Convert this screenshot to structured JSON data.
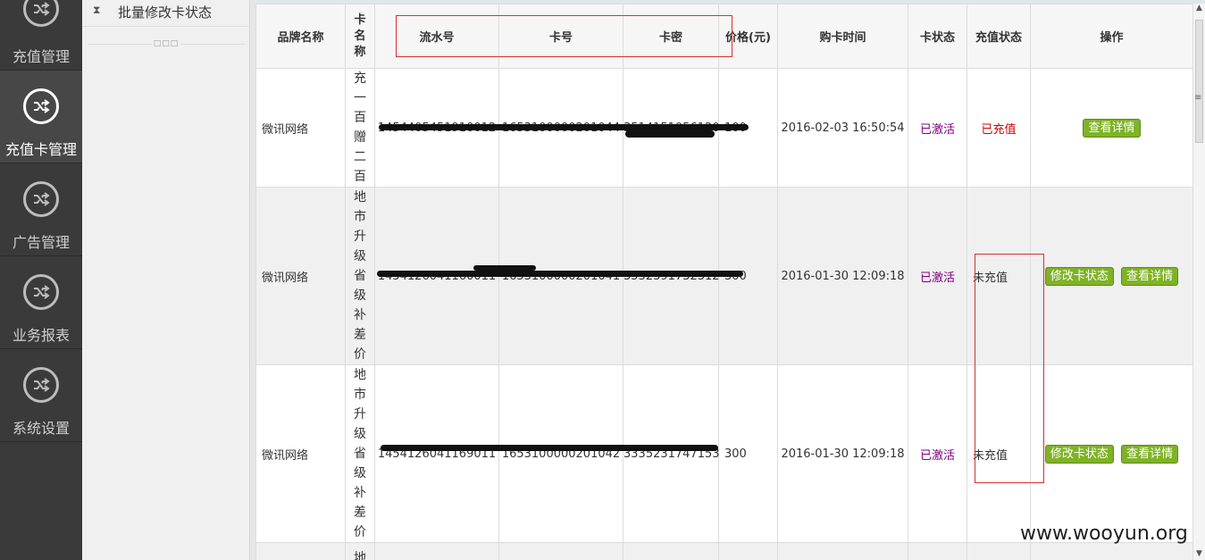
{
  "nav": {
    "items": [
      {
        "label": "充值管理",
        "icon": "shuffle-icon"
      },
      {
        "label": "充值卡管理",
        "icon": "shuffle-icon",
        "active": true
      },
      {
        "label": "广告管理",
        "icon": "shuffle-icon"
      },
      {
        "label": "业务报表",
        "icon": "shuffle-icon"
      },
      {
        "label": "系统设置",
        "icon": "shuffle-icon"
      }
    ]
  },
  "subnav": {
    "item_label": "批量修改卡状态",
    "collapse_dots": "□□□"
  },
  "table": {
    "headers": {
      "brand": "品牌名称",
      "card_name": "卡名称",
      "serial": "流水号",
      "card_no": "卡号",
      "card_pwd": "卡密",
      "price": "价格(元)",
      "buy_time": "购卡时间",
      "card_status": "卡状态",
      "recharge_status": "充值状态",
      "action": "操作"
    },
    "rows": [
      {
        "brand": "微讯网络",
        "card_name": "充一百赠二百",
        "serial": "1454405451910012",
        "card_no": "1653100000201044",
        "card_pwd": "3514151056120",
        "price": "100",
        "buy_time": "2016-02-03 16:50:54",
        "card_status": "已激活",
        "recharge_status": "已充值",
        "actions": [
          "查看详情"
        ]
      },
      {
        "brand": "微讯网络",
        "card_name": "地市升级省级补差价",
        "serial": "1454126041160011",
        "card_no": "1653100000201041",
        "card_pwd": "3532391732312",
        "price": "300",
        "buy_time": "2016-01-30 12:09:18",
        "card_status": "已激活",
        "recharge_status": "未充值",
        "actions": [
          "修改卡状态",
          "查看详情"
        ]
      },
      {
        "brand": "微讯网络",
        "card_name": "地市升级省级补差价",
        "serial": "1454126041169011",
        "card_no": "1653100000201042",
        "card_pwd": "3335231747153",
        "price": "300",
        "buy_time": "2016-01-30 12:09:18",
        "card_status": "已激活",
        "recharge_status": "未充值",
        "actions": [
          "修改卡状态",
          "查看详情"
        ]
      },
      {
        "card_name": "地"
      }
    ]
  },
  "watermark": "www.wooyun.org",
  "colors": {
    "nav_bg": "#3a3a3a",
    "btn_green": "#7fb327",
    "status_purple": "#800080",
    "status_red": "#cc0000",
    "annotation_red": "#d83030"
  }
}
